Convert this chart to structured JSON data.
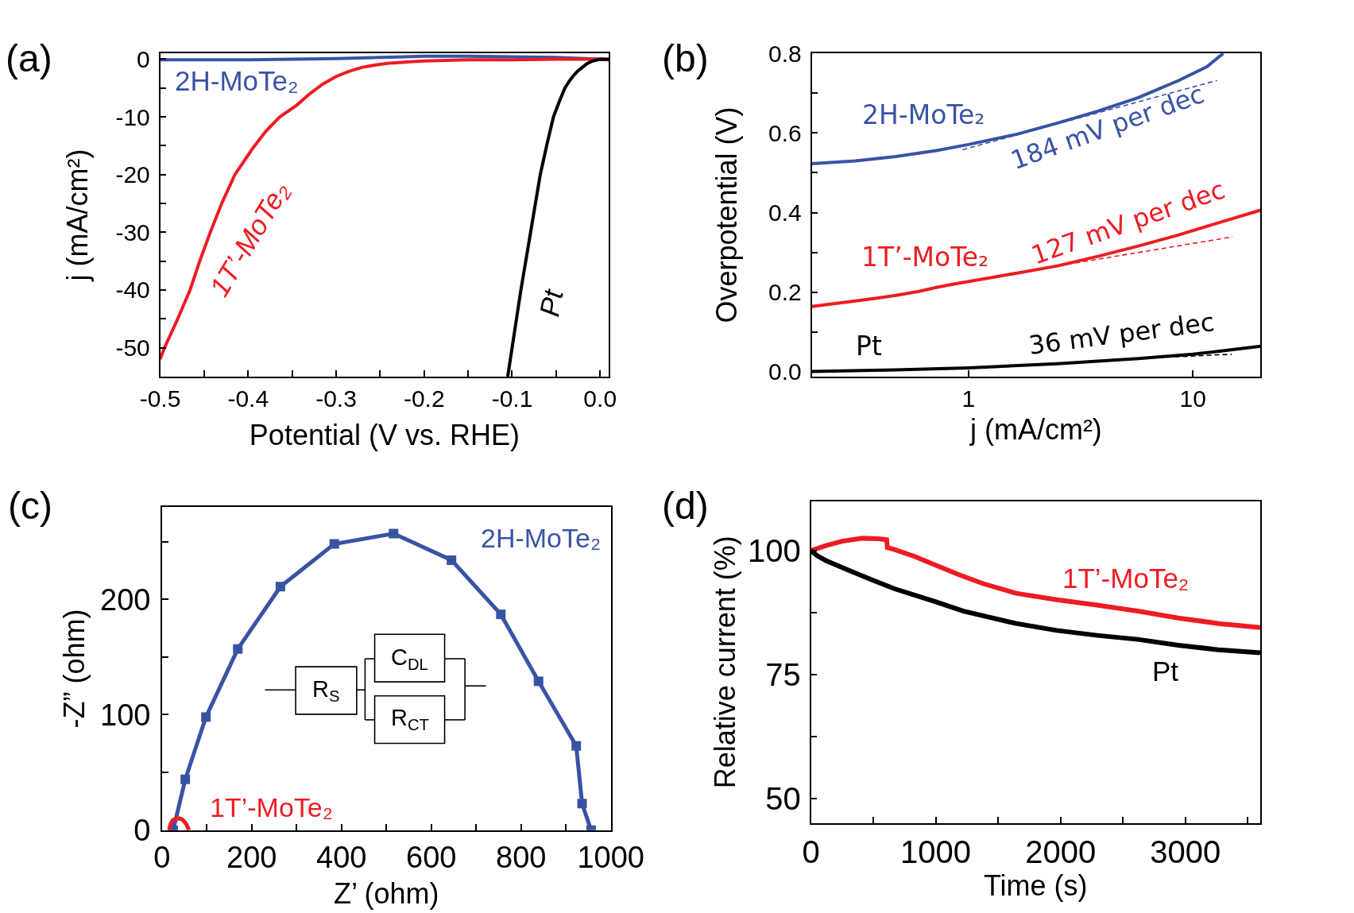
{
  "chart_data": [
    {
      "type": "line",
      "title": "(a)",
      "xlabel": "Potential (V vs. RHE)",
      "ylabel": "j (mA/cm²)",
      "xlim": [
        -0.5,
        0.01
      ],
      "xticks": [
        -0.5,
        {
          "value": -0.45,
          "label": null
        },
        -0.4,
        {
          "value": -0.35,
          "label": null
        },
        -0.3,
        {
          "value": -0.25,
          "label": null
        },
        -0.2,
        {
          "value": -0.15,
          "label": null
        },
        -0.1,
        {
          "value": -0.05,
          "label": null
        },
        {
          "value": 0,
          "label": "0.0"
        }
      ],
      "ylim": [
        -55,
        1
      ],
      "yticks": [
        -50,
        {
          "value": -45,
          "label": null
        },
        -40,
        {
          "value": -35,
          "label": null
        },
        -30,
        {
          "value": -25,
          "label": null
        },
        -20,
        {
          "value": -15,
          "label": null
        },
        -10,
        {
          "value": -5,
          "label": null
        },
        0
      ],
      "series": [
        {
          "name": "2H-MoTe₂",
          "color": "#3953a4",
          "x": [
            -0.5,
            -0.45,
            -0.4,
            -0.35,
            -0.3,
            -0.25,
            -0.2,
            -0.15,
            -0.1,
            -0.05,
            0.0,
            0.01
          ],
          "values": [
            -0.1,
            -0.1,
            -0.1,
            0.0,
            0.1,
            0.3,
            0.5,
            0.5,
            0.4,
            0.3,
            0.0,
            -0.1
          ]
        },
        {
          "name": "1T’-MoTe₂",
          "color": "#ed1c24",
          "x": [
            -0.5,
            -0.495,
            -0.48,
            -0.466,
            -0.455,
            -0.443,
            -0.43,
            -0.415,
            -0.395,
            -0.38,
            -0.364,
            -0.345,
            -0.33,
            -0.315,
            -0.3,
            -0.285,
            -0.27,
            -0.255,
            -0.24,
            -0.22,
            -0.2,
            -0.15,
            -0.1,
            -0.05,
            0.0,
            0.01
          ],
          "values": [
            -52,
            -50,
            -45,
            -40,
            -35,
            -30,
            -25,
            -20,
            -15.5,
            -12.5,
            -10,
            -8,
            -6,
            -4.3,
            -3,
            -2.1,
            -1.4,
            -1,
            -0.7,
            -0.5,
            -0.3,
            -0.1,
            -0.1,
            0,
            0,
            -0.1
          ]
        },
        {
          "name": "Pt",
          "color": "#000000",
          "x": [
            -0.105,
            -0.1,
            -0.09,
            -0.079,
            -0.068,
            -0.06,
            -0.053,
            -0.046,
            -0.04,
            -0.035,
            -0.03,
            -0.025,
            -0.02,
            -0.015,
            -0.01,
            -0.005,
            0.0,
            0.01
          ],
          "values": [
            -55,
            -50,
            -40,
            -30,
            -20,
            -14.5,
            -10,
            -7.2,
            -5,
            -3.8,
            -2.8,
            -2,
            -1.4,
            -0.8,
            -0.4,
            -0.2,
            0,
            0
          ]
        }
      ]
    },
    {
      "type": "line",
      "title": "(b)",
      "xlabel": "j (mA/cm²)",
      "ylabel": "Overpotential (V)",
      "log": "x",
      "xlim": [
        0.2,
        20
      ],
      "xticks": [
        1,
        10
      ],
      "ylim": [
        -0.012,
        0.8
      ],
      "yticks": [
        {
          "value": 0,
          "label": "0.0"
        },
        {
          "value": 0.1,
          "label": null
        },
        0.2,
        {
          "value": 0.3,
          "label": null
        },
        0.4,
        {
          "value": 0.5,
          "label": null
        },
        0.6,
        {
          "value": 0.7,
          "label": null
        },
        0.8
      ],
      "series": [
        {
          "name": "2H-MoTe₂",
          "color": "#3953a4",
          "x": [
            0.2,
            0.313,
            0.474,
            0.718,
            1,
            1.645,
            2.49,
            3.77,
            5.71,
            8.65,
            11.57,
            13.65
          ],
          "values": [
            0.523,
            0.53,
            0.541,
            0.556,
            0.571,
            0.597,
            0.625,
            0.655,
            0.689,
            0.732,
            0.767,
            0.8
          ]
        },
        {
          "name": "1T’-MoTe₂",
          "color": "#ed1c24",
          "x": [
            0.2,
            0.25,
            0.313,
            0.39,
            0.474,
            0.6,
            0.718,
            0.85,
            1,
            1.3,
            1.645,
            2.49,
            3.77,
            5.71,
            8.65,
            13.1,
            20
          ],
          "values": [
            0.164,
            0.171,
            0.178,
            0.185,
            0.192,
            0.202,
            0.212,
            0.22,
            0.227,
            0.238,
            0.248,
            0.266,
            0.29,
            0.316,
            0.344,
            0.375,
            0.406
          ]
        },
        {
          "name": "Pt",
          "color": "#000000",
          "x": [
            0.2,
            0.474,
            1,
            2.49,
            5.71,
            10,
            20
          ],
          "values": [
            0.001,
            0.005,
            0.01,
            0.02,
            0.033,
            0.044,
            0.064
          ]
        },
        {
          "color": "#3953a4",
          "line_style": "dashed",
          "x": [
            0.94,
            12.8
          ],
          "values": [
            0.558,
            0.732
          ]
        },
        {
          "color": "#ed1c24",
          "line_style": "dashed",
          "x": [
            2,
            15
          ],
          "values": [
            0.257,
            0.339
          ]
        },
        {
          "color": "#000000",
          "line_style": "dashed",
          "x": [
            6,
            14.9
          ],
          "values": [
            0.034,
            0.044
          ]
        }
      ],
      "annotations": [
        "184 mV per dec",
        "127 mV per dec",
        "36 mV per dec"
      ]
    },
    {
      "type": "line",
      "title": "(c)",
      "xlabel": "Z’ (ohm)",
      "ylabel": "-Z” (ohm)",
      "xlim": [
        0,
        1000
      ],
      "xticks": [
        0,
        {
          "value": 100,
          "label": null
        },
        200,
        {
          "value": 300,
          "label": null
        },
        400,
        {
          "value": 500,
          "label": null
        },
        600,
        {
          "value": 700,
          "label": null
        },
        800,
        {
          "value": 900,
          "label": null
        },
        1000
      ],
      "ylim": [
        0,
        280
      ],
      "yticks": [
        0,
        {
          "value": 50,
          "label": null
        },
        100,
        {
          "value": 150,
          "label": null
        },
        200,
        {
          "value": 250,
          "label": null
        }
      ],
      "series": [
        {
          "name": "2H-MoTe₂",
          "color": "#3953a4",
          "marker": "square",
          "x": [
            25,
            52,
            98,
            169,
            264,
            384,
            516,
            645,
            755,
            839,
            923,
            936,
            956
          ],
          "values": [
            0,
            44,
            98,
            157,
            211,
            248,
            257,
            234,
            187,
            129,
            73,
            23,
            0
          ]
        },
        {
          "name": "1T’-MoTe₂",
          "color": "#ed1c24",
          "x": [
            16,
            19,
            24,
            31,
            38,
            45,
            52,
            57,
            60
          ],
          "values": [
            0,
            5,
            8.5,
            10,
            10.2,
            9.3,
            6.5,
            3,
            0
          ]
        }
      ],
      "annotations": [
        "R$_{S}$",
        "C$_{DL}$",
        "R$_{CT}$"
      ]
    },
    {
      "type": "line",
      "title": "(d)",
      "xlabel": "Time (s)",
      "ylabel": "Relative current (%)",
      "xlim": [
        0,
        3600
      ],
      "xticks": [
        0,
        {
          "value": 500,
          "label": null
        },
        1000,
        {
          "value": 1500,
          "label": null
        },
        2000,
        {
          "value": 2500,
          "label": null
        },
        3000,
        {
          "value": 3500,
          "label": null
        }
      ],
      "ylim": [
        45,
        110
      ],
      "yticks": [
        50,
        {
          "value": 62.5,
          "label": null
        },
        75,
        {
          "value": 87.5,
          "label": null
        },
        100
      ],
      "series": [
        {
          "name": "1T’-MoTe₂",
          "color": "#ed1c24",
          "x": [
            0,
            120,
            250,
            412,
            542,
            607,
            613,
            671,
            834,
            996,
            1190,
            1385,
            1644,
            1969,
            2293,
            2618,
            2942,
            3266,
            3600
          ],
          "values": [
            100,
            101,
            101.9,
            102.5,
            102.4,
            102.2,
            100.6,
            100.2,
            98.8,
            97.1,
            95.1,
            93.3,
            91.4,
            90.1,
            89,
            87.8,
            86.4,
            85.3,
            84.5
          ]
        },
        {
          "name": "Pt",
          "color": "#000000",
          "x": [
            0,
            55,
            120,
            315,
            509,
            671,
            996,
            1223,
            1644,
            1969,
            2293,
            2618,
            2942,
            3266,
            3600
          ],
          "values": [
            100,
            98.9,
            98,
            95.9,
            93.9,
            92.3,
            89.7,
            87.8,
            85.3,
            83.9,
            82.9,
            82.1,
            80.9,
            80,
            79.4
          ]
        }
      ]
    }
  ]
}
